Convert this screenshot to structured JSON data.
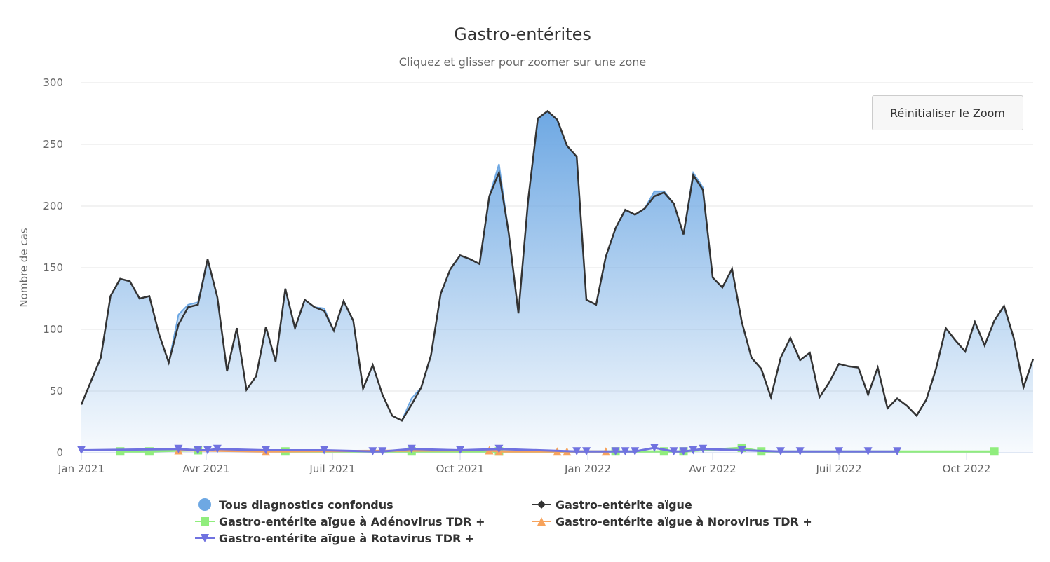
{
  "chart_data": {
    "type": "area",
    "title": "Gastro-entérites",
    "subtitle": "Cliquez et glisser pour zoomer sur une zone",
    "ylabel": "Nombre de cas",
    "xlabel": "",
    "ylim": [
      0,
      300
    ],
    "yticks": [
      0,
      50,
      100,
      150,
      200,
      250,
      300
    ],
    "x_start": "2021-01-01",
    "x_step_days": 7,
    "xticks": [
      {
        "label": "Jan 2021",
        "day": 0
      },
      {
        "label": "Avr 2021",
        "day": 90
      },
      {
        "label": "Juil 2021",
        "day": 181
      },
      {
        "label": "Oct 2021",
        "day": 273
      },
      {
        "label": "Jan 2022",
        "day": 365
      },
      {
        "label": "Avr 2022",
        "day": 455
      },
      {
        "label": "Juil 2022",
        "day": 546
      },
      {
        "label": "Oct 2022",
        "day": 638
      }
    ],
    "grid": true,
    "legend_position": "bottom-center",
    "reset_zoom_label": "Réinitialiser le Zoom",
    "series": [
      {
        "name": "Tous diagnostics confondus",
        "kind": "area",
        "color": "#6ea8e3",
        "marker": "circle",
        "values": [
          39,
          58,
          77,
          127,
          141,
          139,
          125,
          127,
          96,
          73,
          112,
          120,
          122,
          157,
          126,
          66,
          101,
          51,
          62,
          102,
          74,
          133,
          101,
          124,
          118,
          117,
          99,
          123,
          107,
          52,
          71,
          47,
          30,
          26,
          44,
          53,
          79,
          129,
          149,
          160,
          157,
          153,
          208,
          234,
          178,
          113,
          205,
          271,
          277,
          270,
          249,
          240,
          124,
          120,
          159,
          182,
          197,
          193,
          198,
          212,
          212,
          202,
          177,
          227,
          215,
          142,
          134,
          149,
          106,
          77,
          68,
          45,
          77,
          93,
          75,
          81,
          45,
          57,
          72,
          70,
          69,
          47,
          69,
          36,
          44,
          38,
          30,
          43,
          68,
          101,
          91,
          82,
          106,
          87,
          107,
          119,
          93,
          53,
          76
        ]
      },
      {
        "name": "Gastro-entérite aïgue",
        "kind": "line",
        "color": "#333333",
        "marker": "diamond",
        "values": [
          39,
          58,
          77,
          127,
          141,
          139,
          125,
          127,
          96,
          73,
          104,
          118,
          120,
          157,
          126,
          66,
          101,
          51,
          62,
          102,
          74,
          133,
          101,
          124,
          118,
          115,
          99,
          123,
          107,
          52,
          71,
          47,
          30,
          26,
          39,
          53,
          79,
          129,
          149,
          160,
          157,
          153,
          208,
          227,
          178,
          113,
          205,
          271,
          277,
          270,
          249,
          240,
          124,
          120,
          159,
          182,
          197,
          193,
          198,
          208,
          211,
          202,
          177,
          225,
          213,
          142,
          134,
          149,
          106,
          77,
          68,
          45,
          77,
          93,
          75,
          81,
          45,
          57,
          72,
          70,
          69,
          47,
          69,
          36,
          44,
          38,
          30,
          43,
          68,
          101,
          91,
          82,
          106,
          87,
          107,
          119,
          93,
          53,
          76
        ]
      },
      {
        "name": "Gastro-entérite aïgue à Adénovirus TDR +",
        "kind": "line",
        "color": "#90ed7d",
        "marker": "square",
        "points": [
          [
            4,
            1
          ],
          [
            7,
            1
          ],
          [
            12,
            2
          ],
          [
            21,
            1
          ],
          [
            34,
            1
          ],
          [
            43,
            1
          ],
          [
            55,
            1
          ],
          [
            60,
            1
          ],
          [
            62,
            1
          ],
          [
            68,
            4
          ],
          [
            70,
            1
          ],
          [
            94,
            1
          ]
        ]
      },
      {
        "name": "Gastro-entérite aïgue à Norovirus TDR +",
        "kind": "line",
        "color": "#f7a35c",
        "marker": "triangle",
        "points": [
          [
            10,
            2
          ],
          [
            19,
            1
          ],
          [
            42,
            2
          ],
          [
            43,
            1
          ],
          [
            49,
            1
          ],
          [
            50,
            1
          ],
          [
            54,
            1
          ]
        ]
      },
      {
        "name": "Gastro-entérite aïgue à Rotavirus TDR +",
        "kind": "line",
        "color": "#7072e0",
        "marker": "triangle-down",
        "points": [
          [
            0,
            2
          ],
          [
            10,
            3
          ],
          [
            12,
            2
          ],
          [
            13,
            2
          ],
          [
            14,
            3
          ],
          [
            19,
            2
          ],
          [
            25,
            2
          ],
          [
            30,
            1
          ],
          [
            31,
            1
          ],
          [
            34,
            3
          ],
          [
            39,
            2
          ],
          [
            43,
            3
          ],
          [
            51,
            1
          ],
          [
            52,
            1
          ],
          [
            55,
            1
          ],
          [
            56,
            1
          ],
          [
            57,
            1
          ],
          [
            59,
            4
          ],
          [
            61,
            1
          ],
          [
            62,
            1
          ],
          [
            63,
            2
          ],
          [
            64,
            3
          ],
          [
            68,
            2
          ],
          [
            72,
            1
          ],
          [
            74,
            1
          ],
          [
            78,
            1
          ],
          [
            81,
            1
          ],
          [
            84,
            1
          ]
        ]
      }
    ]
  }
}
